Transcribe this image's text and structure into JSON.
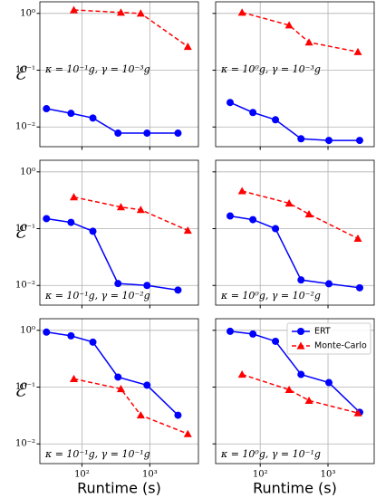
{
  "chart_data": [
    {
      "type": "line",
      "xscale": "log",
      "yscale": "log",
      "grid": true,
      "ylabel": "ℰ",
      "annotation": "κ = 10⁻¹g, γ = 10⁻³g",
      "xlim": [
        24,
        5200
      ],
      "ylim": [
        0.0045,
        1.6
      ],
      "xticks": [
        {
          "value": 100,
          "label": "10²"
        },
        {
          "value": 1000,
          "label": "10³"
        }
      ],
      "yticks": [
        {
          "value": 0.01,
          "label": "10⁻²"
        },
        {
          "value": 0.1,
          "label": "10⁻¹"
        },
        {
          "value": 1,
          "label": "10⁰"
        }
      ],
      "series": [
        {
          "color": "#0000ff",
          "marker": "circle",
          "linestyle": "solid",
          "x": [
            30,
            69,
            145,
            340,
            910,
            2600
          ],
          "values": [
            0.021,
            0.0174,
            0.0144,
            0.0078,
            0.0078,
            0.0078
          ]
        },
        {
          "color": "#ff0000",
          "marker": "triangle",
          "linestyle": "dashed",
          "x": [
            76,
            375,
            735,
            3630
          ],
          "values": [
            1.15,
            1.04,
            1.0,
            0.26
          ]
        }
      ]
    },
    {
      "type": "line",
      "xscale": "log",
      "yscale": "log",
      "grid": true,
      "annotation": "κ = 10⁰g, γ = 10⁻³g",
      "xlim": [
        22,
        4800
      ],
      "ylim": [
        0.0045,
        1.6
      ],
      "xticks": [
        {
          "value": 100,
          "label": "10²"
        },
        {
          "value": 1000,
          "label": "10³"
        }
      ],
      "yticks": [
        {
          "value": 0.01,
          "label": "10⁻²"
        },
        {
          "value": 0.1,
          "label": "10⁻¹"
        },
        {
          "value": 1,
          "label": "10⁰"
        }
      ],
      "series": [
        {
          "color": "#0000ff",
          "marker": "circle",
          "linestyle": "solid",
          "x": [
            36,
            78,
            168,
            400,
            1030,
            2930
          ],
          "values": [
            0.027,
            0.018,
            0.0134,
            0.0062,
            0.0058,
            0.0058
          ]
        },
        {
          "color": "#ff0000",
          "marker": "triangle",
          "linestyle": "dashed",
          "x": [
            54,
            267,
            525,
            2760
          ],
          "values": [
            1.04,
            0.62,
            0.31,
            0.21
          ]
        }
      ]
    },
    {
      "type": "line",
      "xscale": "log",
      "yscale": "log",
      "grid": true,
      "ylabel": "ℰ",
      "annotation": "κ = 10⁻¹g, γ = 10⁻²g",
      "xlim": [
        24,
        5200
      ],
      "ylim": [
        0.0045,
        1.6
      ],
      "xticks": [
        {
          "value": 100,
          "label": "10²"
        },
        {
          "value": 1000,
          "label": "10³"
        }
      ],
      "yticks": [
        {
          "value": 0.01,
          "label": "10⁻²"
        },
        {
          "value": 0.1,
          "label": "10⁻¹"
        },
        {
          "value": 1,
          "label": "10⁰"
        }
      ],
      "series": [
        {
          "color": "#0000ff",
          "marker": "circle",
          "linestyle": "solid",
          "x": [
            30,
            69,
            145,
            340,
            910,
            2600
          ],
          "values": [
            0.15,
            0.129,
            0.09,
            0.0108,
            0.01,
            0.0083
          ]
        },
        {
          "color": "#ff0000",
          "marker": "triangle",
          "linestyle": "dashed",
          "x": [
            76,
            375,
            735,
            3630
          ],
          "values": [
            0.36,
            0.24,
            0.215,
            0.093
          ]
        }
      ]
    },
    {
      "type": "line",
      "xscale": "log",
      "yscale": "log",
      "grid": true,
      "annotation": "κ = 10⁰g, γ = 10⁻²g",
      "xlim": [
        22,
        4800
      ],
      "ylim": [
        0.0045,
        1.6
      ],
      "xticks": [
        {
          "value": 100,
          "label": "10²"
        },
        {
          "value": 1000,
          "label": "10³"
        }
      ],
      "yticks": [
        {
          "value": 0.01,
          "label": "10⁻²"
        },
        {
          "value": 0.1,
          "label": "10⁻¹"
        },
        {
          "value": 1,
          "label": "10⁰"
        }
      ],
      "series": [
        {
          "color": "#0000ff",
          "marker": "circle",
          "linestyle": "solid",
          "x": [
            36,
            78,
            168,
            400,
            1030,
            2930
          ],
          "values": [
            0.167,
            0.144,
            0.1,
            0.0125,
            0.0107,
            0.0091
          ]
        },
        {
          "color": "#ff0000",
          "marker": "triangle",
          "linestyle": "dashed",
          "x": [
            54,
            267,
            525,
            2760
          ],
          "values": [
            0.46,
            0.28,
            0.18,
            0.067
          ]
        }
      ]
    },
    {
      "type": "line",
      "xscale": "log",
      "yscale": "log",
      "grid": true,
      "ylabel": "ℰ",
      "xlabel": "Runtime (s)",
      "annotation": "κ = 10⁻¹g, γ = 10⁻¹g",
      "xlim": [
        24,
        5200
      ],
      "ylim": [
        0.0045,
        1.6
      ],
      "xticks": [
        {
          "value": 100,
          "label": "10²"
        },
        {
          "value": 1000,
          "label": "10³"
        }
      ],
      "yticks": [
        {
          "value": 0.01,
          "label": "10⁻²"
        },
        {
          "value": 0.1,
          "label": "10⁻¹"
        },
        {
          "value": 1,
          "label": "10⁰"
        }
      ],
      "series": [
        {
          "color": "#0000ff",
          "marker": "circle",
          "linestyle": "solid",
          "x": [
            30,
            69,
            145,
            340,
            910,
            2600
          ],
          "values": [
            0.93,
            0.8,
            0.62,
            0.15,
            0.108,
            0.032
          ]
        },
        {
          "color": "#ff0000",
          "marker": "triangle",
          "linestyle": "dashed",
          "x": [
            76,
            375,
            735,
            3630
          ],
          "values": [
            0.14,
            0.093,
            0.032,
            0.015
          ]
        }
      ]
    },
    {
      "type": "line",
      "xscale": "log",
      "yscale": "log",
      "grid": true,
      "xlabel": "Runtime (s)",
      "legend": "upper right",
      "annotation": "κ = 10⁰g, γ = 10⁻¹g",
      "xlim": [
        22,
        4800
      ],
      "ylim": [
        0.0045,
        1.6
      ],
      "xticks": [
        {
          "value": 100,
          "label": "10²"
        },
        {
          "value": 1000,
          "label": "10³"
        }
      ],
      "yticks": [
        {
          "value": 0.01,
          "label": "10⁻²"
        },
        {
          "value": 0.1,
          "label": "10⁻¹"
        },
        {
          "value": 1,
          "label": "10⁰"
        }
      ],
      "series": [
        {
          "name": "ERT",
          "color": "#0000ff",
          "marker": "circle",
          "linestyle": "solid",
          "x": [
            36,
            78,
            168,
            400,
            1030,
            2930
          ],
          "values": [
            0.96,
            0.86,
            0.64,
            0.167,
            0.12,
            0.036
          ]
        },
        {
          "name": "Monte-Carlo",
          "color": "#ff0000",
          "marker": "triangle",
          "linestyle": "dashed",
          "x": [
            54,
            267,
            525,
            2760
          ],
          "values": [
            0.167,
            0.09,
            0.058,
            0.035
          ]
        }
      ]
    }
  ]
}
